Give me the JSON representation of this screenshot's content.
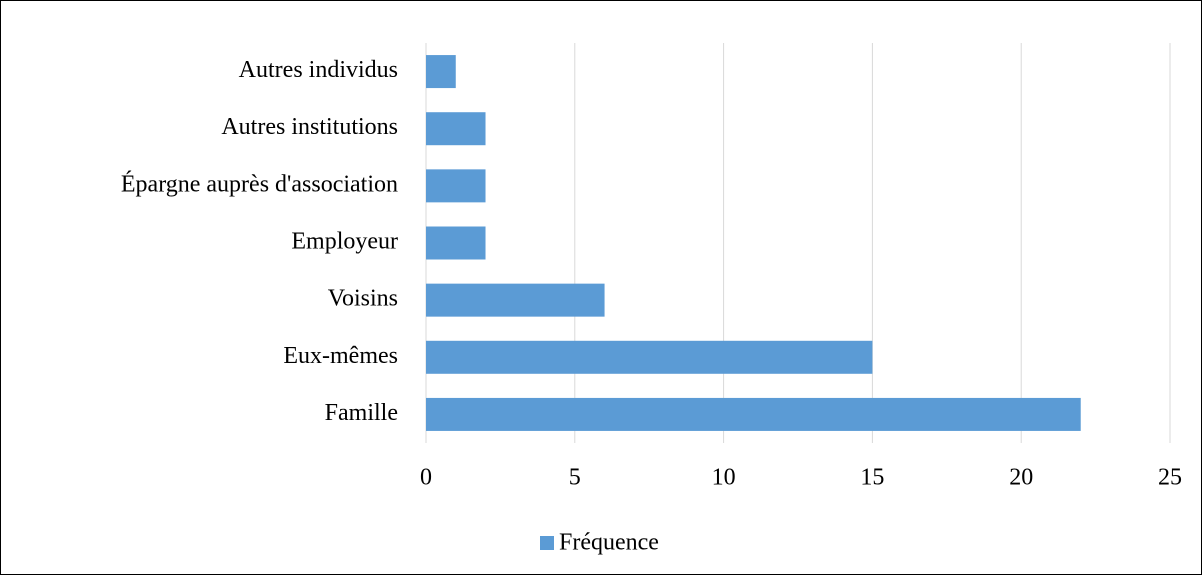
{
  "chart_data": {
    "type": "barh",
    "categories": [
      "Famille",
      "Eux-mêmes",
      "Voisins",
      "Employeur",
      "Épargne auprès d'association",
      "Autres institutions",
      "Autres individus"
    ],
    "series": [
      {
        "name": "Fréquence",
        "color": "#5b9bd5",
        "values": [
          22,
          15,
          6,
          2,
          2,
          2,
          1
        ]
      }
    ],
    "xlim": [
      0,
      25
    ],
    "xticks": [
      0,
      5,
      10,
      15,
      20,
      25
    ],
    "grid": true,
    "legend": "bottom"
  }
}
